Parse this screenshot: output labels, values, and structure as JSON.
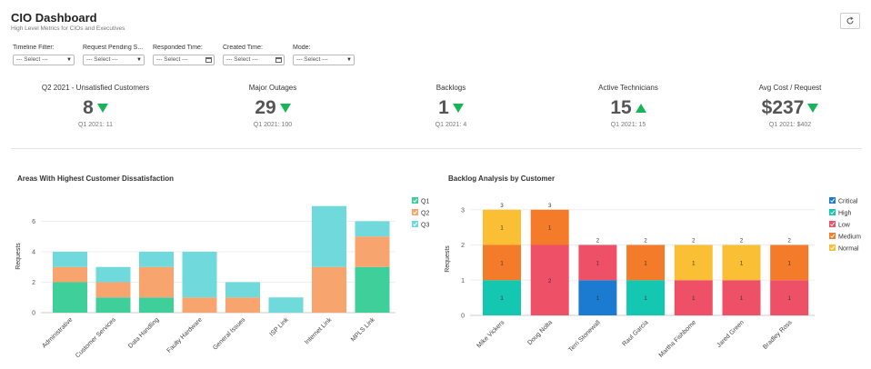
{
  "header": {
    "title": "CIO Dashboard",
    "subtitle": "High Level Metrics for CIOs and Executives"
  },
  "toolbar": {
    "refresh_icon": "refresh-icon"
  },
  "filters": [
    {
      "label": "Timeline Filter:",
      "value": "--- Select ---",
      "type": "select"
    },
    {
      "label": "Request Pending S...",
      "value": "--- Select ---",
      "type": "select"
    },
    {
      "label": "Responded Time:",
      "value": "--- Select ---",
      "type": "date"
    },
    {
      "label": "Created Time:",
      "value": "--- Select ---",
      "type": "date"
    },
    {
      "label": "Mode:",
      "value": "--- Select ---",
      "type": "select"
    }
  ],
  "kpis": [
    {
      "label": "Q2 2021 - Unsatisfied Customers",
      "value": "8",
      "trend": "down",
      "previous": "Q1 2021: 11"
    },
    {
      "label": "Major Outages",
      "value": "29",
      "trend": "down",
      "previous": "Q1 2021: 100"
    },
    {
      "label": "Backlogs",
      "value": "1",
      "trend": "down",
      "previous": "Q1 2021: 4"
    },
    {
      "label": "Active Technicians",
      "value": "15",
      "trend": "up",
      "previous": "Q1 2021: 15"
    },
    {
      "label": "Avg Cost / Request",
      "value": "$237",
      "trend": "down",
      "previous": "Q1 2021: $402"
    }
  ],
  "colors": {
    "trend": "#19b45a",
    "q1": "#3ecf9a",
    "q2": "#f8a46f",
    "q3": "#6fd9dc",
    "critical": "#1a7bd1",
    "high": "#14c7b0",
    "low": "#ee5068",
    "medium": "#f47b2a",
    "normal": "#fbbf36"
  },
  "chart_data": [
    {
      "type": "bar",
      "stacked": true,
      "title": "Areas With Highest Customer Dissatisfaction",
      "ylabel": "Requests",
      "xlabel": "",
      "ylim": [
        0,
        7.4
      ],
      "yticks": [
        0,
        2,
        4,
        6
      ],
      "grid": true,
      "legend": "top-right",
      "categories": [
        "Administrative",
        "Customer Services",
        "Data Handling",
        "Faulty Hardware",
        "General Issues",
        "ISP Link",
        "Internet Link",
        "MPLS Link"
      ],
      "series": [
        {
          "name": "Q1",
          "color": "#3ecf9a",
          "values": [
            2,
            1,
            1,
            0,
            0,
            0,
            0,
            3
          ]
        },
        {
          "name": "Q2",
          "color": "#f8a46f",
          "values": [
            1,
            1,
            2,
            1,
            1,
            0,
            3,
            2
          ]
        },
        {
          "name": "Q3",
          "color": "#6fd9dc",
          "values": [
            1,
            1,
            1,
            3,
            1,
            1,
            4,
            1
          ]
        }
      ]
    },
    {
      "type": "bar",
      "stacked": true,
      "title": "Backlog Analysis by Customer",
      "ylabel": "Requests",
      "xlabel": "",
      "ylim": [
        0,
        3.2
      ],
      "yticks": [
        0,
        1,
        2,
        3
      ],
      "grid": true,
      "legend": "top-right",
      "categories": [
        "Mike Vickers",
        "Doug Nolta",
        "Terri Stonewall",
        "Raul Garcia",
        "Martha Fishbome",
        "Jared Green",
        "Bradley Ross"
      ],
      "totals": [
        3,
        3,
        2,
        2,
        2,
        2,
        2
      ],
      "series": [
        {
          "name": "Critical",
          "color": "#1a7bd1",
          "values": [
            0,
            0,
            1,
            0,
            0,
            0,
            0
          ]
        },
        {
          "name": "High",
          "color": "#14c7b0",
          "values": [
            1,
            0,
            0,
            1,
            0,
            0,
            0
          ]
        },
        {
          "name": "Low",
          "color": "#ee5068",
          "values": [
            0,
            2,
            1,
            0,
            1,
            1,
            1
          ]
        },
        {
          "name": "Medium",
          "color": "#f47b2a",
          "values": [
            1,
            1,
            0,
            1,
            0,
            0,
            1
          ]
        },
        {
          "name": "Normal",
          "color": "#fbbf36",
          "values": [
            1,
            0,
            0,
            0,
            1,
            1,
            0
          ]
        }
      ]
    }
  ]
}
